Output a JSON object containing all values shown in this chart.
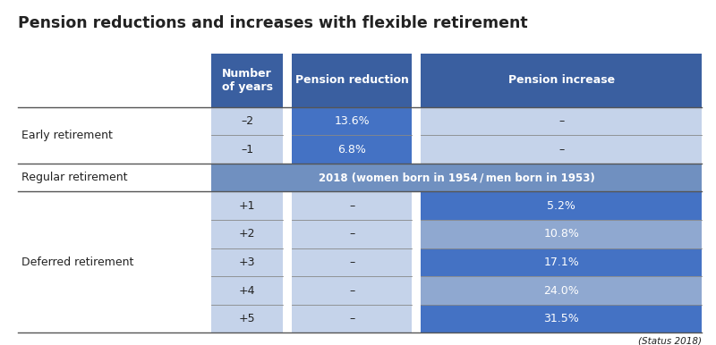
{
  "title": "Pension reductions and increases with flexible retirement",
  "title_fontsize": 12.5,
  "title_fontweight": "bold",
  "figsize": [
    8.0,
    3.86
  ],
  "dpi": 100,
  "background_color": "#ffffff",
  "colors": {
    "header_blue": "#3A5FA0",
    "cell_light_blue": "#C5D3EA",
    "cell_medium_blue": "#8FA8D0",
    "cell_dark_blue": "#4472C4",
    "regular_row_blue": "#7090C0",
    "text_white": "#FFFFFF",
    "text_dark": "#222222",
    "sep_line": "#888888",
    "thick_line": "#555555"
  },
  "col_headers": [
    "Number\nof years",
    "Pension reduction",
    "Pension increase"
  ],
  "rows": [
    {
      "years": "–2",
      "reduction": "13.6%",
      "increase": "–",
      "type": "early"
    },
    {
      "years": "–1",
      "reduction": "6.8%",
      "increase": "–",
      "type": "early"
    },
    {
      "years": "regular",
      "reduction": "2018 (women born in 1954 / men born in 1953)",
      "increase": null,
      "type": "regular"
    },
    {
      "years": "+1",
      "reduction": "–",
      "increase": "5.2%",
      "type": "deferred"
    },
    {
      "years": "+2",
      "reduction": "–",
      "increase": "10.8%",
      "type": "deferred"
    },
    {
      "years": "+3",
      "reduction": "–",
      "increase": "17.1%",
      "type": "deferred"
    },
    {
      "years": "+4",
      "reduction": "–",
      "increase": "24.0%",
      "type": "deferred"
    },
    {
      "years": "+5",
      "reduction": "–",
      "increase": "31.5%",
      "type": "deferred"
    }
  ],
  "section_labels": [
    {
      "label": "Early retirement",
      "start": 0,
      "end": 1
    },
    {
      "label": "Regular retirement",
      "start": 2,
      "end": 2
    },
    {
      "label": "Deferred retirement",
      "start": 3,
      "end": 7
    }
  ],
  "status_note": "(Status 2018)"
}
